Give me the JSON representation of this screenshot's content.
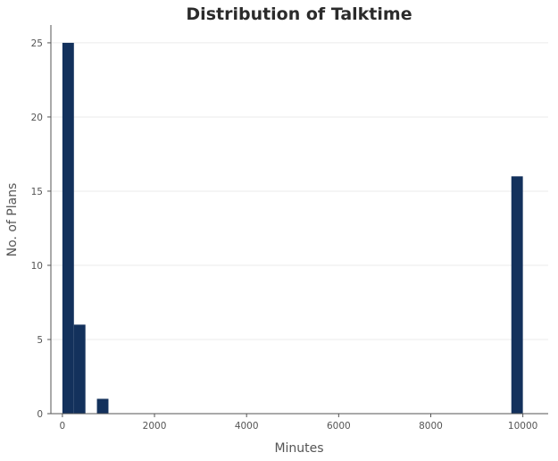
{
  "chart_data": {
    "type": "bar",
    "title": "Distribution of Talktime",
    "xlabel": "Minutes",
    "ylabel": "No. of Plans",
    "xlim": [
      -250,
      10550
    ],
    "ylim": [
      0,
      26.2
    ],
    "xticks": [
      0,
      2000,
      4000,
      6000,
      8000,
      10000
    ],
    "yticks": [
      0,
      5,
      10,
      15,
      20,
      25
    ],
    "grid": "horizontal",
    "bar_color": "#13315c",
    "bins": [
      {
        "x0": 0,
        "x1": 250,
        "value": 25
      },
      {
        "x0": 250,
        "x1": 500,
        "value": 6
      },
      {
        "x0": 750,
        "x1": 1000,
        "value": 1
      },
      {
        "x0": 9750,
        "x1": 10000,
        "value": 16
      }
    ]
  }
}
